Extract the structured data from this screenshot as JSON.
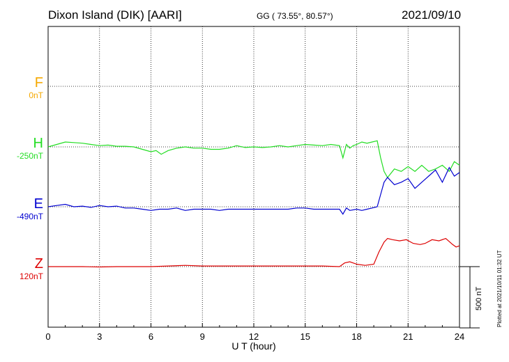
{
  "header": {
    "station": "Dixon Island (DIK)  [AARI]",
    "coords": "GG ( 73.55°,  80.57°)",
    "date": "2021/09/10"
  },
  "footer": {
    "plotted": "Plotted at 2021/10/11 01:32 UT",
    "scale": "500 nT"
  },
  "chart_data": {
    "type": "line",
    "xlabel": "U T (hour)",
    "ylabel": "",
    "xlim": [
      0,
      24
    ],
    "x_ticks": [
      "0",
      "3",
      "6",
      "9",
      "12",
      "15",
      "18",
      "21",
      "24"
    ],
    "grid": true,
    "scale_bar_nT": 500,
    "components": [
      {
        "letter": "F",
        "baseline": "0nT",
        "color": "#f5a800"
      },
      {
        "letter": "H",
        "baseline": "-250nT",
        "color": "#22dd22"
      },
      {
        "letter": "E",
        "baseline": "-490nT",
        "color": "#0000d0"
      },
      {
        "letter": "Z",
        "baseline": "120nT",
        "color": "#dd0000"
      }
    ],
    "series": [
      {
        "name": "H",
        "color": "#22dd22",
        "x": [
          0,
          0.5,
          1,
          1.5,
          2,
          2.5,
          3,
          3.5,
          4,
          4.5,
          5,
          5.5,
          6,
          6.3,
          6.6,
          7,
          7.5,
          8,
          8.5,
          9,
          9.5,
          10,
          10.5,
          11,
          11.5,
          12,
          12.5,
          13,
          13.5,
          14,
          14.5,
          15,
          15.5,
          16,
          16.5,
          17,
          17.2,
          17.4,
          17.6,
          17.8,
          18,
          18.3,
          18.6,
          18.9,
          19.2,
          19.4,
          19.6,
          19.8,
          20.2,
          20.6,
          21,
          21.4,
          21.8,
          22.2,
          22.6,
          23,
          23.4,
          23.7,
          24
        ],
        "y": [
          0,
          20,
          40,
          35,
          30,
          20,
          10,
          15,
          5,
          5,
          0,
          -20,
          -40,
          -30,
          -60,
          -30,
          -10,
          0,
          -10,
          -10,
          -20,
          -20,
          -10,
          10,
          -5,
          0,
          -5,
          0,
          10,
          0,
          10,
          20,
          15,
          10,
          20,
          10,
          -90,
          20,
          -10,
          10,
          20,
          40,
          30,
          40,
          50,
          -90,
          -200,
          -250,
          -180,
          -200,
          -160,
          -200,
          -150,
          -200,
          -180,
          -150,
          -200,
          -120,
          -150
        ]
      },
      {
        "name": "E",
        "color": "#0000d0",
        "x": [
          0,
          0.5,
          1,
          1.5,
          2,
          2.5,
          3,
          3.5,
          4,
          4.5,
          5,
          5.5,
          6,
          6.5,
          7,
          7.5,
          8,
          8.5,
          9,
          9.5,
          10,
          10.5,
          11,
          11.5,
          12,
          12.5,
          13,
          13.5,
          14,
          14.5,
          15,
          15.5,
          16,
          16.5,
          17,
          17.2,
          17.4,
          17.6,
          18,
          18.3,
          18.6,
          18.9,
          19.2,
          19.4,
          19.6,
          19.8,
          20.2,
          20.6,
          21,
          21.4,
          21.8,
          22.2,
          22.6,
          23,
          23.4,
          23.7,
          24
        ],
        "y": [
          0,
          10,
          20,
          0,
          5,
          -5,
          10,
          0,
          5,
          -10,
          -10,
          -20,
          -30,
          -20,
          -20,
          -10,
          -30,
          -20,
          -20,
          -20,
          -30,
          -20,
          -20,
          -20,
          -20,
          -20,
          -20,
          -20,
          -20,
          -10,
          -10,
          -20,
          -20,
          -20,
          -20,
          -60,
          -10,
          -30,
          -20,
          -30,
          -20,
          -10,
          0,
          100,
          200,
          240,
          180,
          200,
          230,
          150,
          200,
          250,
          300,
          200,
          320,
          250,
          280
        ]
      },
      {
        "name": "Z",
        "color": "#dd0000",
        "x": [
          0,
          1,
          2,
          3,
          4,
          5,
          6,
          7,
          8,
          9,
          10,
          11,
          12,
          13,
          14,
          15,
          16,
          17,
          17.3,
          17.6,
          18,
          18.5,
          19,
          19.3,
          19.6,
          19.8,
          20.1,
          20.5,
          20.9,
          21.3,
          21.7,
          22,
          22.4,
          22.8,
          23.2,
          23.6,
          23.8,
          24
        ],
        "y": [
          0,
          0,
          0,
          -3,
          0,
          0,
          0,
          5,
          10,
          5,
          5,
          5,
          5,
          5,
          5,
          5,
          5,
          0,
          30,
          40,
          20,
          10,
          20,
          120,
          200,
          230,
          220,
          210,
          220,
          190,
          180,
          190,
          220,
          210,
          230,
          180,
          160,
          170
        ]
      }
    ]
  }
}
